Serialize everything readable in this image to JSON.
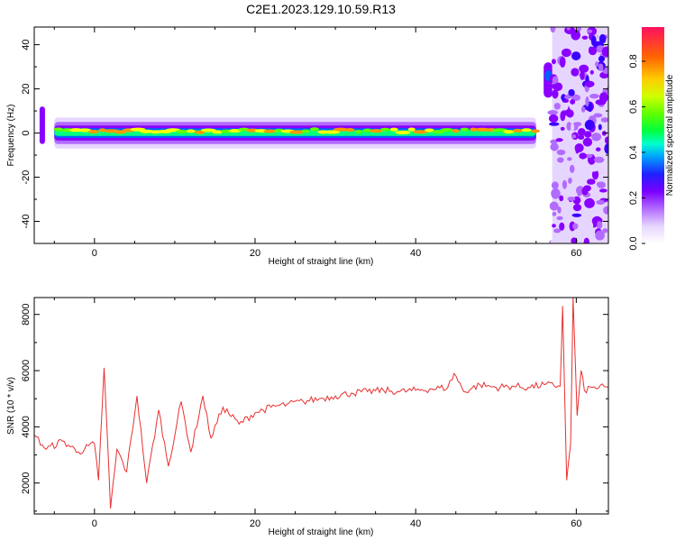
{
  "title": "C2E1.2023.129.10.59.R13",
  "colors": {
    "snr_line": "#e83030",
    "colormap": [
      "#ffffff",
      "#e6d6ff",
      "#b36bff",
      "#8a00ff",
      "#3a00ff",
      "#0060ff",
      "#00e0ff",
      "#00ff80",
      "#60ff00",
      "#ffff00",
      "#ff9900",
      "#ff2050"
    ]
  },
  "chart_data": [
    {
      "type": "heatmap",
      "xlabel": "Height of straight line (km)",
      "ylabel": "Frequency (Hz)",
      "xlim": [
        -7.5,
        64
      ],
      "ylim": [
        -50,
        48
      ],
      "xticks": [
        0,
        20,
        40,
        60
      ],
      "yticks": [
        -40,
        -20,
        0,
        20,
        40
      ],
      "colorbar": {
        "label": "Normalized spectral amplitude",
        "range": [
          0.0,
          0.95
        ],
        "ticks": [
          0.0,
          0.2,
          0.4,
          0.6,
          0.8
        ]
      },
      "band": {
        "x_start": -5,
        "x_end": 55,
        "center_hz": 0,
        "note": "narrow band near 0 Hz with peak amplitudes ~0.9"
      },
      "features": [
        {
          "x": -6.5,
          "y_range": [
            -5,
            12
          ],
          "amplitude": 0.25
        },
        {
          "x": 56.5,
          "y_center": 24,
          "amplitude": 0.35
        },
        {
          "x_range": [
            57,
            64
          ],
          "y_range": [
            -50,
            48
          ],
          "amplitude": 0.1,
          "note": "broadband scatter"
        }
      ]
    },
    {
      "type": "line",
      "xlabel": "Height of straight line (km)",
      "ylabel": "SNR (10 * v/v)",
      "xlim": [
        -7.5,
        64
      ],
      "ylim": [
        900,
        8600
      ],
      "xticks": [
        0,
        20,
        40,
        60
      ],
      "yticks": [
        2000,
        4000,
        6000,
        8000
      ],
      "series": [
        {
          "x": [
            -7.5,
            -6,
            -4,
            -2,
            0,
            0.5,
            1.2,
            2,
            2.8,
            4,
            5.3,
            6.5,
            8,
            9.2,
            10.8,
            12,
            13.5,
            14.5,
            16,
            18,
            20,
            22,
            24,
            26,
            28,
            30,
            32,
            34,
            36,
            38,
            40,
            42,
            44,
            44.8,
            46,
            48,
            50,
            52,
            54,
            56,
            58,
            58.3,
            58.8,
            59.3,
            59.6,
            60.1,
            60.6,
            61,
            62,
            64
          ],
          "y": [
            3700,
            3200,
            3500,
            3100,
            3400,
            2100,
            6100,
            1100,
            3200,
            2400,
            5100,
            2000,
            4600,
            2600,
            4900,
            3100,
            5100,
            3600,
            4700,
            4100,
            4500,
            4700,
            4800,
            4900,
            5000,
            5100,
            5200,
            5250,
            5300,
            5250,
            5300,
            5350,
            5400,
            5900,
            5250,
            5500,
            5400,
            5450,
            5400,
            5500,
            5450,
            8300,
            2100,
            3400,
            8600,
            4400,
            6000,
            5300,
            5400,
            5400
          ]
        }
      ]
    }
  ]
}
